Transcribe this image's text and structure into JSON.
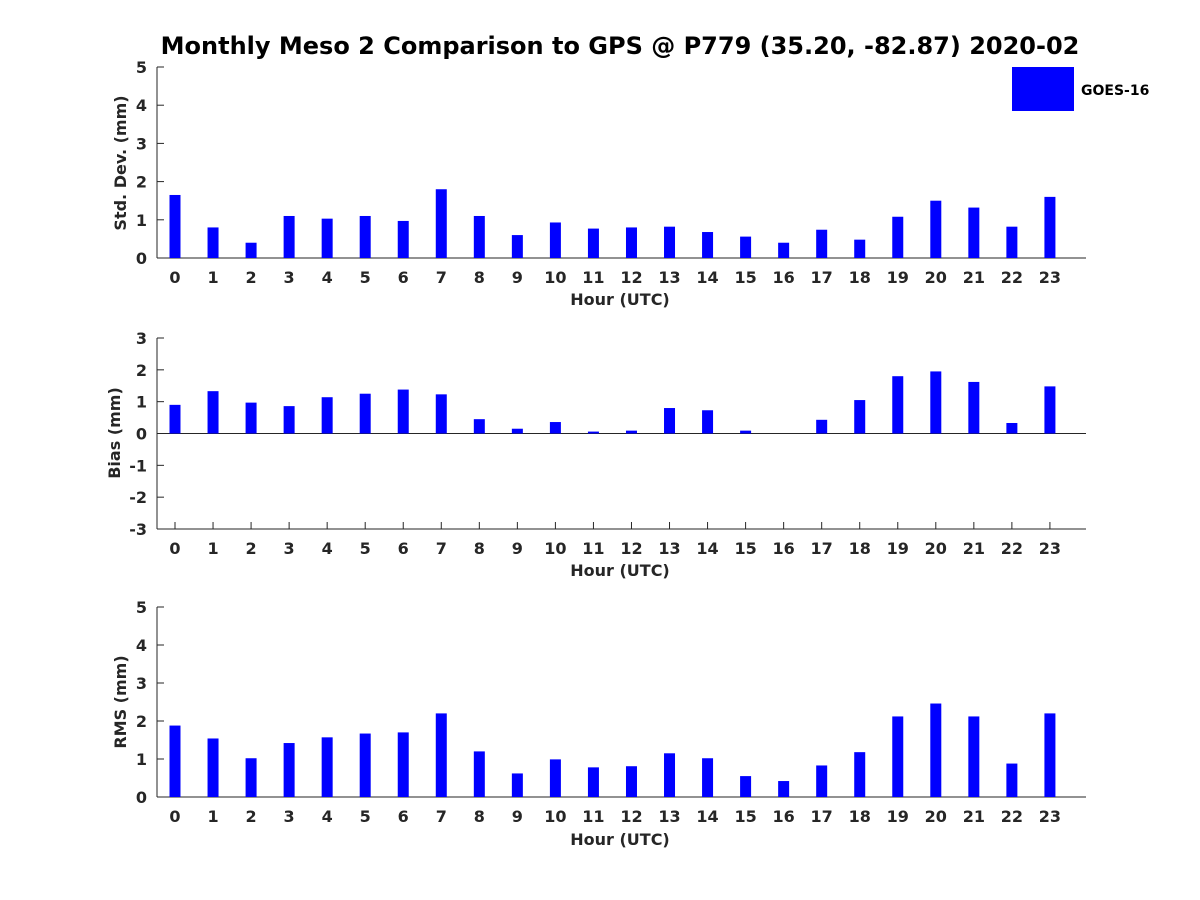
{
  "chart_data": {
    "title": "Monthly Meso 2 Comparison to GPS @ P779 (35.20, -82.87) 2020-02",
    "legend": {
      "label": "GOES-16",
      "color": "#0000ff",
      "placement": "top-right"
    },
    "panels": [
      {
        "type": "bar",
        "xlabel": "Hour (UTC)",
        "ylabel": "Std. Dev. (mm)",
        "ylim": [
          0,
          5
        ],
        "yticks": [
          "0",
          "1",
          "2",
          "3",
          "4",
          "5"
        ],
        "categories": [
          "0",
          "1",
          "2",
          "3",
          "4",
          "5",
          "6",
          "7",
          "8",
          "9",
          "10",
          "11",
          "12",
          "13",
          "14",
          "15",
          "16",
          "17",
          "18",
          "19",
          "20",
          "21",
          "22",
          "23"
        ],
        "series": [
          {
            "name": "GOES-16",
            "values": [
              1.65,
              0.8,
              0.4,
              1.1,
              1.03,
              1.1,
              0.97,
              1.8,
              1.1,
              0.6,
              0.93,
              0.77,
              0.8,
              0.82,
              0.68,
              0.56,
              0.4,
              0.74,
              0.48,
              1.08,
              1.5,
              1.32,
              0.82,
              1.6
            ]
          }
        ]
      },
      {
        "type": "bar",
        "xlabel": "Hour (UTC)",
        "ylabel": "Bias (mm)",
        "ylim": [
          -3,
          3
        ],
        "yticks": [
          "-3",
          "-2",
          "-1",
          "0",
          "1",
          "2",
          "3"
        ],
        "categories": [
          "0",
          "1",
          "2",
          "3",
          "4",
          "5",
          "6",
          "7",
          "8",
          "9",
          "10",
          "11",
          "12",
          "13",
          "14",
          "15",
          "16",
          "17",
          "18",
          "19",
          "20",
          "21",
          "22",
          "23"
        ],
        "series": [
          {
            "name": "GOES-16",
            "values": [
              0.9,
              1.33,
              0.97,
              0.86,
              1.14,
              1.25,
              1.38,
              1.23,
              0.45,
              0.15,
              0.36,
              0.06,
              0.09,
              0.8,
              0.73,
              0.09,
              0.0,
              0.43,
              1.05,
              1.8,
              1.95,
              1.62,
              0.33,
              1.48
            ]
          }
        ]
      },
      {
        "type": "bar",
        "xlabel": "Hour (UTC)",
        "ylabel": "RMS (mm)",
        "ylim": [
          0,
          5
        ],
        "yticks": [
          "0",
          "1",
          "2",
          "3",
          "4",
          "5"
        ],
        "categories": [
          "0",
          "1",
          "2",
          "3",
          "4",
          "5",
          "6",
          "7",
          "8",
          "9",
          "10",
          "11",
          "12",
          "13",
          "14",
          "15",
          "16",
          "17",
          "18",
          "19",
          "20",
          "21",
          "22",
          "23"
        ],
        "series": [
          {
            "name": "GOES-16",
            "values": [
              1.88,
              1.54,
              1.02,
              1.42,
              1.57,
              1.67,
              1.7,
              2.2,
              1.2,
              0.62,
              0.99,
              0.78,
              0.81,
              1.15,
              1.02,
              0.55,
              0.42,
              0.83,
              1.18,
              2.12,
              2.46,
              2.12,
              0.88,
              2.2
            ]
          }
        ]
      }
    ]
  }
}
